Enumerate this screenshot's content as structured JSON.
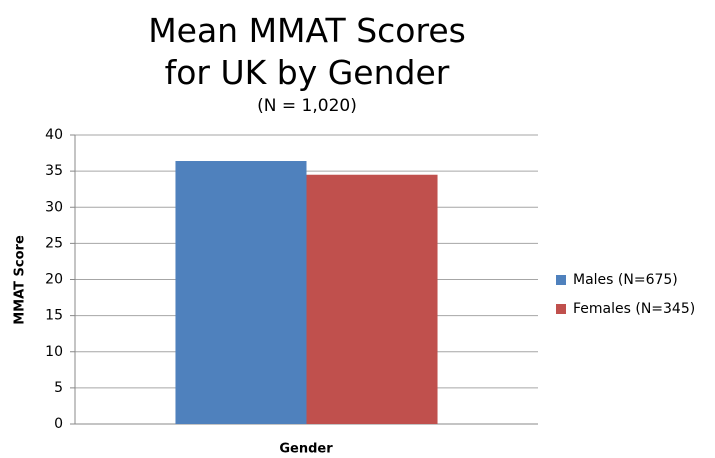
{
  "chart_data": {
    "type": "bar",
    "title": "Mean MMAT Scores for UK by Gender",
    "subtitle": "(N = 1,020)",
    "x_label": "Gender",
    "y_label": "MMAT Score",
    "categories": [
      null
    ],
    "series": [
      {
        "name": "Males (N=675)",
        "color": "#4f81bd",
        "values": [
          36.4
        ]
      },
      {
        "name": "Females (N=345)",
        "color": "#c0504d",
        "values": [
          34.5
        ]
      }
    ],
    "ylim": [
      0,
      40
    ],
    "yticks": [
      0,
      5,
      10,
      15,
      20,
      25,
      30,
      35,
      40
    ],
    "grid": true,
    "legend": "right"
  }
}
